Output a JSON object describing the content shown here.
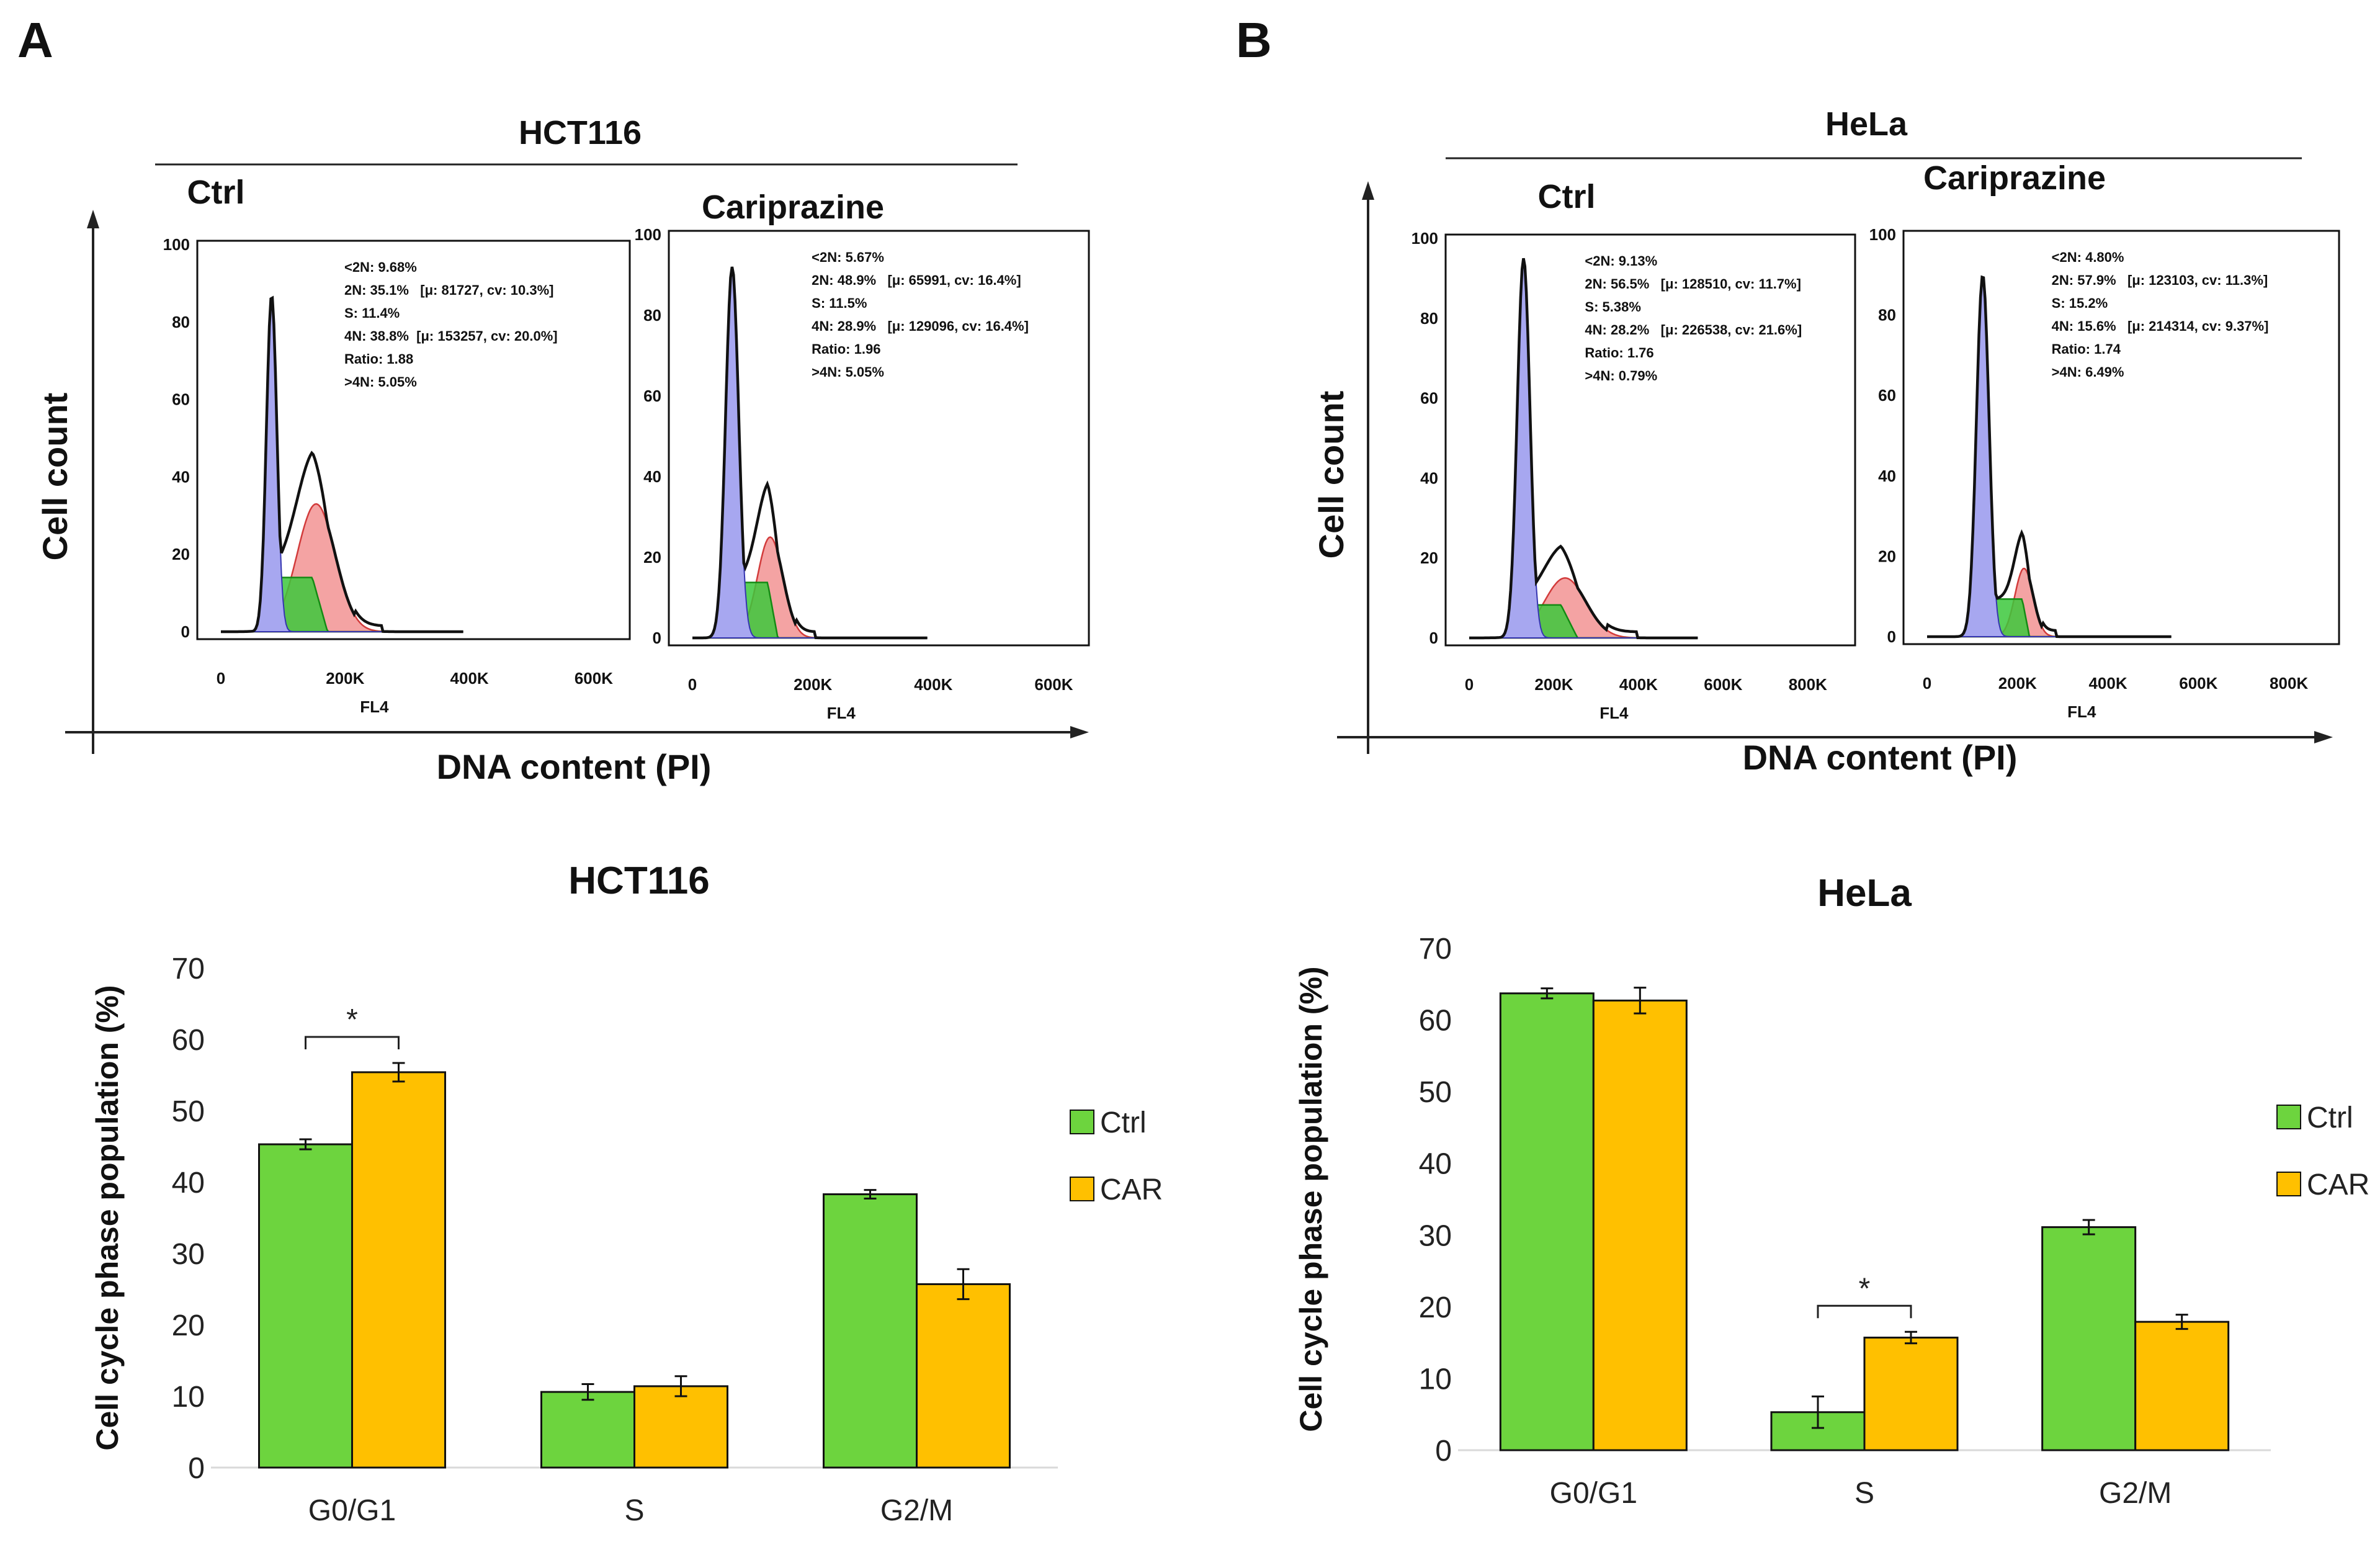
{
  "panels": {
    "a": {
      "letter": "A",
      "cell_line": "HCT116",
      "ylabel": "Cell count",
      "xlabel": "DNA content (PI)"
    },
    "b": {
      "letter": "B",
      "cell_line": "HeLa",
      "ylabel": "Cell count",
      "xlabel": "DNA content (PI)"
    }
  },
  "colors": {
    "g1_fill": "#a7a7f0",
    "s_fill": "#3cc83c",
    "g2_fill": "#f4a3a3",
    "ctrl": "#6dd43e",
    "car": "#ffc000"
  },
  "chart_data": [
    {
      "type": "histogram",
      "title": "HCT116",
      "subtitle": "Ctrl",
      "xlabel": "FL4",
      "x_ticks": [
        "0",
        "200K",
        "400K",
        "600K"
      ],
      "y_ticks": [
        "0",
        "20",
        "40",
        "60",
        "80",
        "100"
      ],
      "xlim": [
        0,
        650000
      ],
      "ylim": [
        0,
        100
      ],
      "stats": [
        "<2N: 9.68%",
        "2N: 35.1%   [μ: 81727, cv: 10.3%]",
        "S: 11.4%",
        "4N: 38.8%  [μ: 153257, cv: 20.0%]",
        "Ratio: 1.88",
        ">4N: 5.05%"
      ],
      "series": [
        {
          "name": "G1 peak",
          "mu": 81727,
          "sd": 8400,
          "height": 87
        },
        {
          "name": "G2/M peak",
          "mu": 153257,
          "sd": 30650,
          "height": 33
        }
      ]
    },
    {
      "type": "histogram",
      "title": "HCT116",
      "subtitle": "Cariprazine",
      "xlabel": "FL4",
      "x_ticks": [
        "0",
        "200K",
        "400K",
        "600K"
      ],
      "y_ticks": [
        "0",
        "20",
        "40",
        "60",
        "80",
        "100"
      ],
      "xlim": [
        0,
        650000
      ],
      "ylim": [
        0,
        100
      ],
      "stats": [
        "<2N: 5.67%",
        "2N: 48.9%   [μ: 65991, cv: 16.4%]",
        "S: 11.5%",
        "4N: 28.9%   [μ: 129096, cv: 16.4%]",
        "Ratio: 1.96",
        ">4N: 5.05%"
      ],
      "series": [
        {
          "name": "G1 peak",
          "mu": 65991,
          "sd": 10800,
          "height": 92
        },
        {
          "name": "G2/M peak",
          "mu": 129096,
          "sd": 21170,
          "height": 25
        }
      ]
    },
    {
      "type": "histogram",
      "title": "HeLa",
      "subtitle": "Ctrl",
      "xlabel": "FL4",
      "x_ticks": [
        "0",
        "200K",
        "400K",
        "600K",
        "800K"
      ],
      "y_ticks": [
        "0",
        "20",
        "40",
        "60",
        "80",
        "100"
      ],
      "xlim": [
        0,
        900000
      ],
      "ylim": [
        0,
        100
      ],
      "stats": [
        "<2N: 9.13%",
        "2N: 56.5%   [μ: 128510, cv: 11.7%]",
        "S: 5.38%",
        "4N: 28.2%   [μ: 226538, cv: 21.6%]",
        "Ratio: 1.76",
        ">4N: 0.79%"
      ],
      "series": [
        {
          "name": "G1 peak",
          "mu": 128510,
          "sd": 15030,
          "height": 95
        },
        {
          "name": "G2/M peak",
          "mu": 226538,
          "sd": 48930,
          "height": 15
        }
      ]
    },
    {
      "type": "histogram",
      "title": "HeLa",
      "subtitle": "Cariprazine",
      "xlabel": "FL4",
      "x_ticks": [
        "0",
        "200K",
        "400K",
        "600K",
        "800K"
      ],
      "y_ticks": [
        "0",
        "20",
        "40",
        "60",
        "80",
        "100"
      ],
      "xlim": [
        0,
        900000
      ],
      "ylim": [
        0,
        100
      ],
      "stats": [
        "<2N: 4.80%",
        "2N: 57.9%   [μ: 123103, cv: 11.3%]",
        "S: 15.2%",
        "4N: 15.6%   [μ: 214314, cv: 9.37%]",
        "Ratio: 1.74",
        ">4N: 6.49%"
      ],
      "series": [
        {
          "name": "G1 peak",
          "mu": 123103,
          "sd": 13910,
          "height": 90
        },
        {
          "name": "G2/M peak",
          "mu": 214314,
          "sd": 20080,
          "height": 17
        }
      ]
    },
    {
      "type": "bar",
      "title": "HCT116",
      "ylabel": "Cell cycle phase population (%)",
      "categories": [
        "G0/G1",
        "S",
        "G2/M"
      ],
      "ylim": [
        0,
        70
      ],
      "y_ticks": [
        "0",
        "10",
        "20",
        "30",
        "40",
        "50",
        "60",
        "70"
      ],
      "series": [
        {
          "name": "Ctrl",
          "values": [
            45.3,
            10.6,
            38.3
          ],
          "errors": [
            0.7,
            1.1,
            0.6
          ]
        },
        {
          "name": "CAR",
          "values": [
            55.4,
            11.4,
            25.7
          ],
          "errors": [
            1.3,
            1.4,
            2.1
          ]
        }
      ],
      "significance": [
        {
          "category": "G0/G1",
          "label": "*"
        }
      ]
    },
    {
      "type": "bar",
      "title": "HeLa",
      "ylabel": "Cell cycle phase population (%)",
      "categories": [
        "G0/G1",
        "S",
        "G2/M"
      ],
      "ylim": [
        0,
        70
      ],
      "y_ticks": [
        "0",
        "10",
        "20",
        "30",
        "40",
        "50",
        "60",
        "70"
      ],
      "series": [
        {
          "name": "Ctrl",
          "values": [
            63.7,
            5.3,
            31.1
          ],
          "errors": [
            0.7,
            2.2,
            1.0
          ]
        },
        {
          "name": "CAR",
          "values": [
            62.7,
            15.7,
            17.9
          ],
          "errors": [
            1.8,
            0.8,
            1.0
          ]
        }
      ],
      "significance": [
        {
          "category": "S",
          "label": "*"
        }
      ]
    }
  ]
}
